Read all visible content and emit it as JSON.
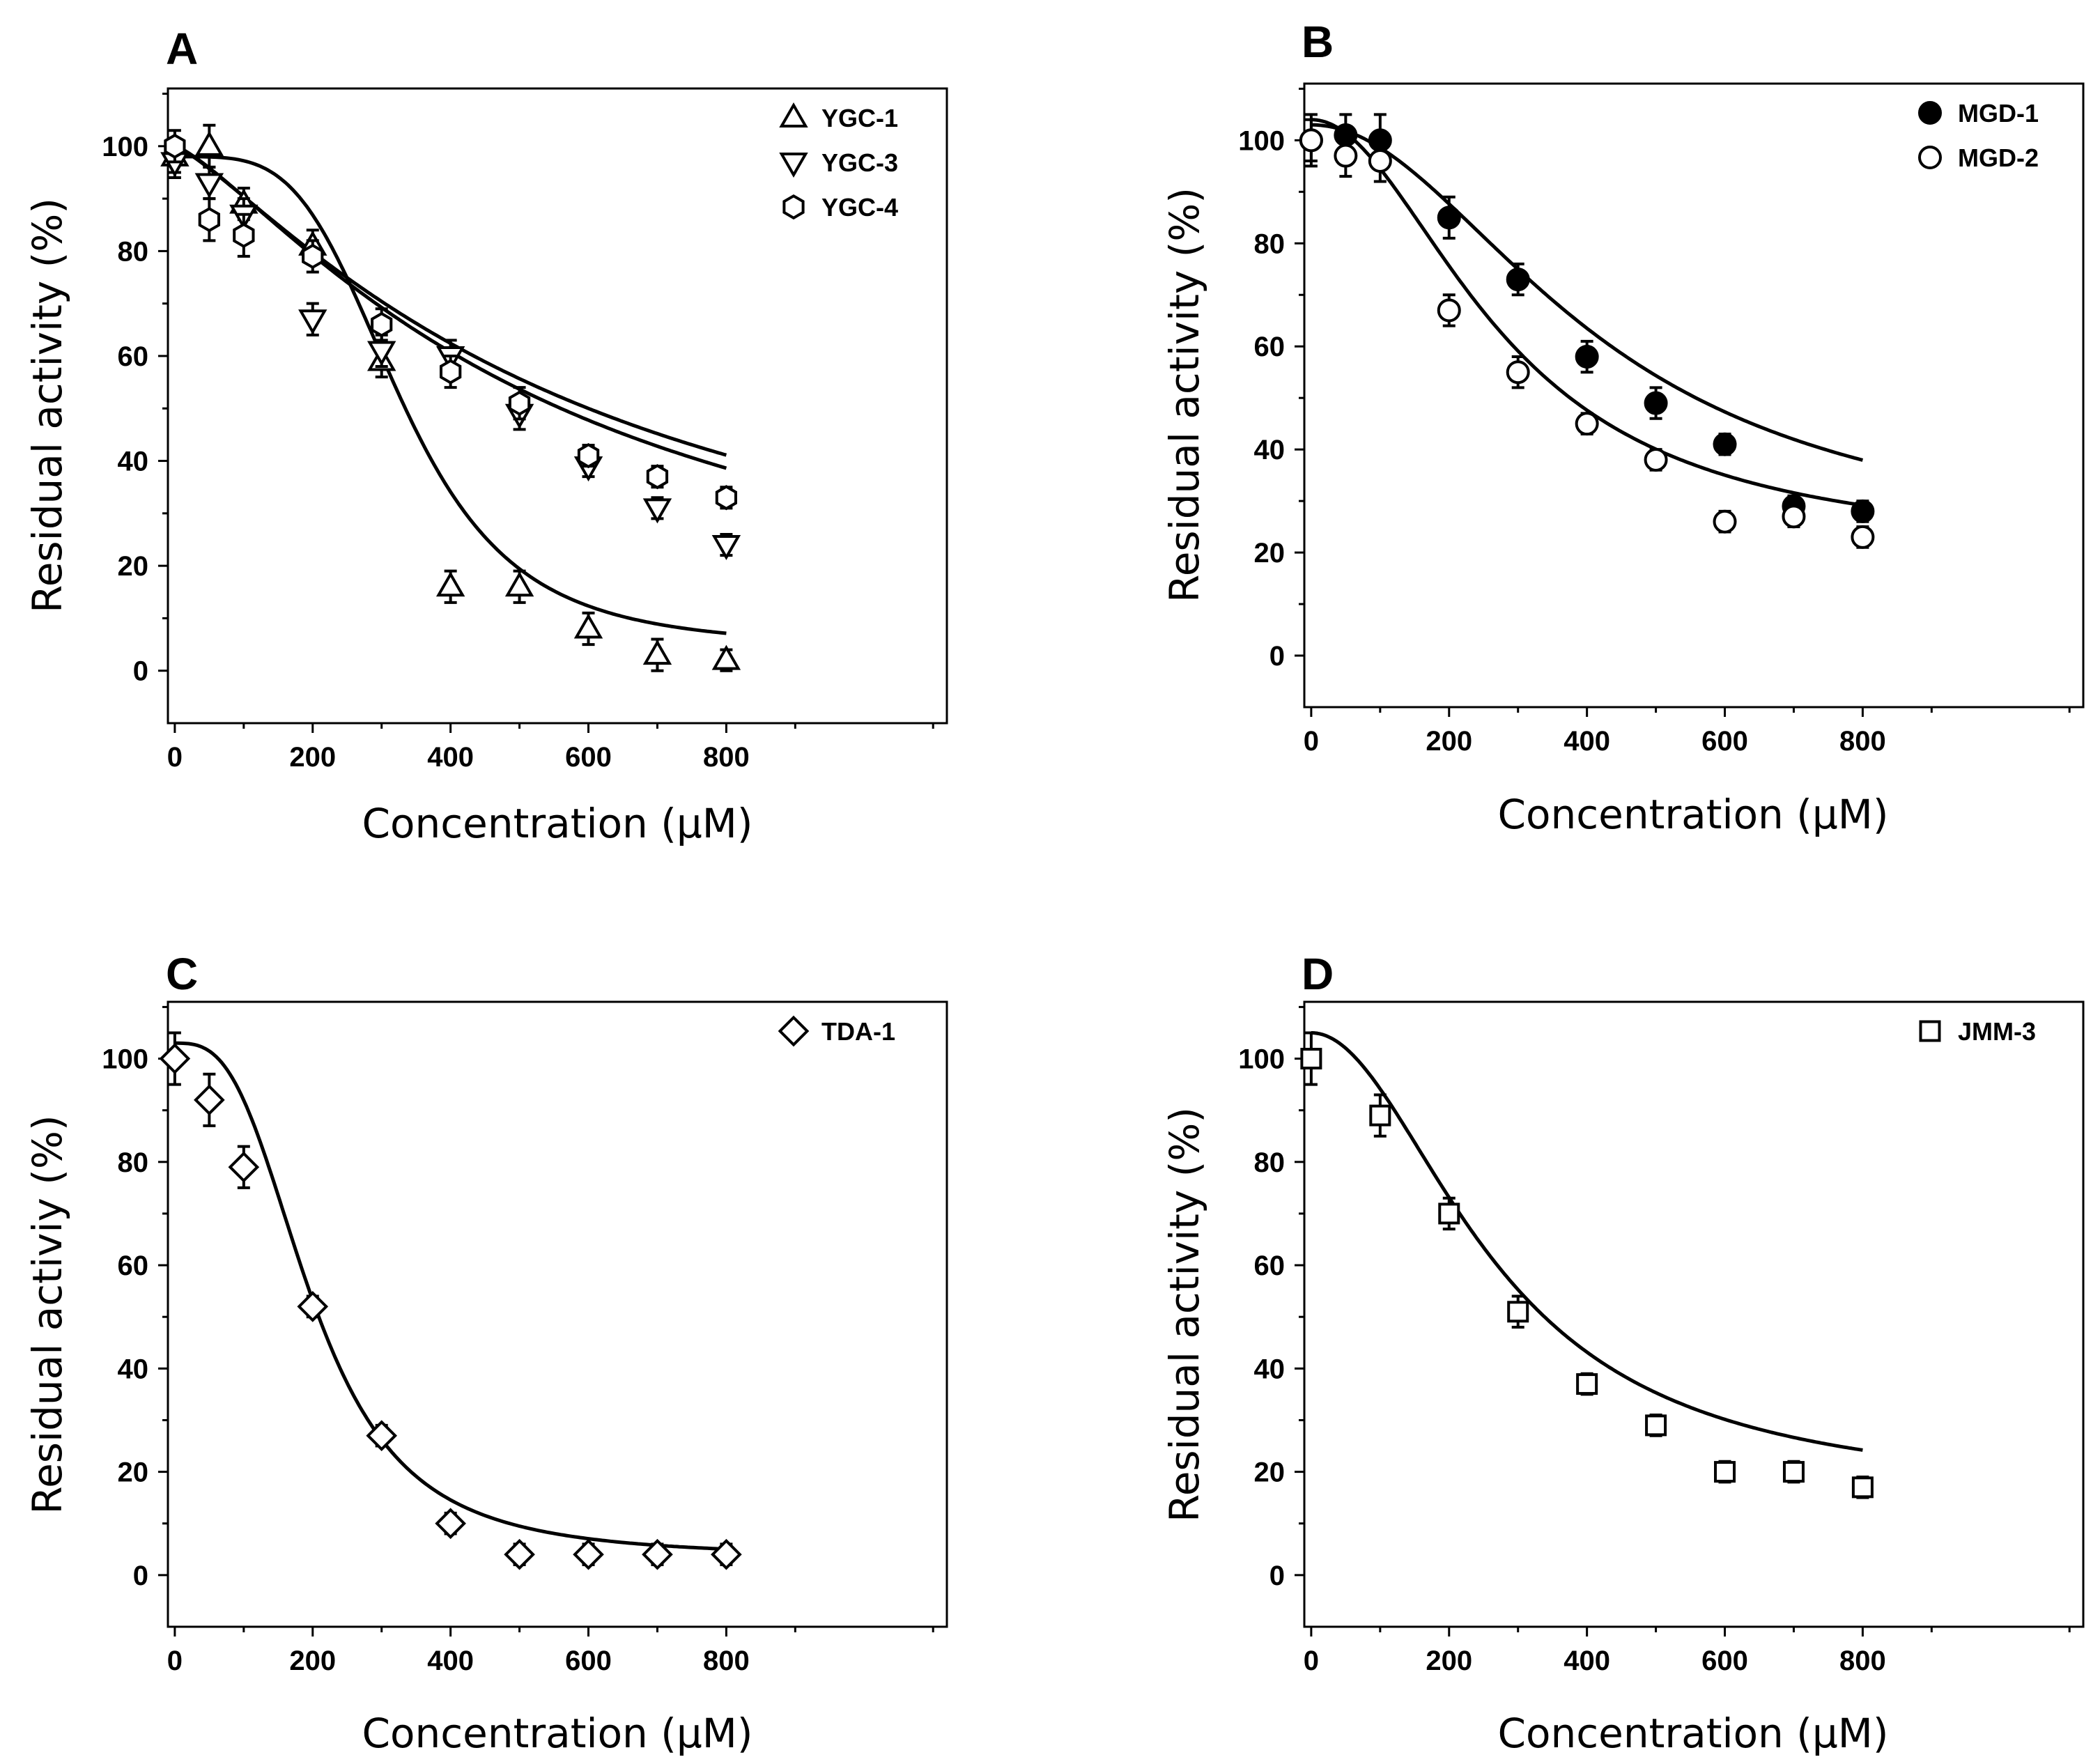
{
  "chart_data": [
    {
      "type": "scatter",
      "panel": "A",
      "xlabel": "Concentration (μM)",
      "ylabel": "Residual activity (%)",
      "xlim": [
        -10,
        1120
      ],
      "ylim": [
        -10,
        111
      ],
      "xticks": [
        0,
        200,
        400,
        600,
        800
      ],
      "yticks": [
        0,
        20,
        40,
        60,
        80,
        100
      ],
      "legend_position": "top-right",
      "series": [
        {
          "name": "YGC-1",
          "marker": "triangle-up",
          "filled": false,
          "x": [
            0,
            50,
            100,
            200,
            300,
            400,
            500,
            600,
            700,
            800
          ],
          "y": [
            98,
            100,
            89,
            81,
            59,
            16,
            16,
            8,
            3,
            2
          ],
          "err": [
            3,
            4,
            3,
            3,
            3,
            3,
            3,
            3,
            3,
            2
          ],
          "fit": {
            "model": "logistic",
            "top": 98,
            "bottom": 4.5,
            "ic50": 330,
            "hill": 4.0
          }
        },
        {
          "name": "YGC-3",
          "marker": "triangle-down",
          "filled": false,
          "x": [
            0,
            50,
            100,
            200,
            300,
            400,
            500,
            600,
            700,
            800
          ],
          "y": [
            97,
            93,
            87,
            67,
            61,
            60,
            49,
            39,
            31,
            24
          ],
          "err": [
            3,
            3,
            3,
            3,
            3,
            3,
            3,
            2,
            2,
            2
          ],
          "fit": {
            "model": "logistic",
            "top": 100,
            "bottom": 0,
            "ic50": 560,
            "hill": 1.3
          }
        },
        {
          "name": "YGC-4",
          "marker": "hexagon",
          "filled": false,
          "x": [
            0,
            50,
            100,
            200,
            300,
            400,
            500,
            600,
            700,
            800
          ],
          "y": [
            100,
            86,
            83,
            79,
            66,
            57,
            51,
            41,
            37,
            33
          ],
          "err": [
            3,
            4,
            4,
            3,
            3,
            3,
            3,
            2,
            2,
            2
          ],
          "fit": {
            "model": "logistic",
            "top": 100,
            "bottom": 0,
            "ic50": 600,
            "hill": 1.25
          }
        }
      ]
    },
    {
      "type": "scatter",
      "panel": "B",
      "xlabel": "Concentration (μM)",
      "ylabel": "Residual activity (%)",
      "xlim": [
        -10,
        1120
      ],
      "ylim": [
        -10,
        111
      ],
      "xticks": [
        0,
        200,
        400,
        600,
        800
      ],
      "yticks": [
        0,
        20,
        40,
        60,
        80,
        100
      ],
      "legend_position": "top-right",
      "series": [
        {
          "name": "MGD-1",
          "marker": "circle",
          "filled": true,
          "x": [
            0,
            50,
            100,
            200,
            300,
            400,
            500,
            600,
            700,
            800
          ],
          "y": [
            100,
            101,
            100,
            85,
            73,
            58,
            49,
            41,
            29,
            28
          ],
          "err": [
            4,
            4,
            5,
            4,
            3,
            3,
            3,
            2,
            2,
            2
          ],
          "fit": {
            "model": "logistic",
            "top": 103,
            "bottom": 20,
            "ic50": 420,
            "hill": 2.0
          }
        },
        {
          "name": "MGD-2",
          "marker": "circle",
          "filled": false,
          "x": [
            0,
            50,
            100,
            200,
            300,
            400,
            500,
            600,
            700,
            800
          ],
          "y": [
            100,
            97,
            96,
            67,
            55,
            45,
            38,
            26,
            27,
            23
          ],
          "err": [
            5,
            4,
            4,
            3,
            3,
            2,
            2,
            2,
            2,
            2
          ],
          "fit": {
            "model": "logistic",
            "top": 104,
            "bottom": 20,
            "ic50": 280,
            "hill": 2.0
          }
        }
      ]
    },
    {
      "type": "scatter",
      "panel": "C",
      "xlabel": "Concentration (μM)",
      "ylabel": "Residual activiy (%)",
      "xlim": [
        -10,
        1120
      ],
      "ylim": [
        -10,
        111
      ],
      "xticks": [
        0,
        200,
        400,
        600,
        800
      ],
      "yticks": [
        0,
        20,
        40,
        60,
        80,
        100
      ],
      "legend_position": "top-right",
      "series": [
        {
          "name": "TDA-1",
          "marker": "diamond",
          "filled": false,
          "x": [
            0,
            50,
            100,
            200,
            300,
            400,
            500,
            600,
            700,
            800
          ],
          "y": [
            100,
            92,
            79,
            52,
            27,
            10,
            4,
            4,
            4,
            4
          ],
          "err": [
            5,
            5,
            4,
            2,
            2,
            2,
            2,
            2,
            2,
            2
          ],
          "fit": {
            "model": "logistic",
            "top": 103,
            "bottom": 3.5,
            "ic50": 200,
            "hill": 3.0
          }
        }
      ]
    },
    {
      "type": "scatter",
      "panel": "D",
      "xlabel": "Concentration (μM)",
      "ylabel": "Residual activity (%)",
      "xlim": [
        -10,
        1120
      ],
      "ylim": [
        -10,
        111
      ],
      "xticks": [
        0,
        200,
        400,
        600,
        800
      ],
      "yticks": [
        0,
        20,
        40,
        60,
        80,
        100
      ],
      "legend_position": "top-right",
      "series": [
        {
          "name": "JMM-3",
          "marker": "square",
          "filled": false,
          "x": [
            0,
            100,
            200,
            300,
            400,
            500,
            600,
            700,
            800
          ],
          "y": [
            100,
            89,
            70,
            51,
            37,
            29,
            20,
            20,
            17
          ],
          "err": [
            5,
            4,
            3,
            3,
            2,
            2,
            2,
            2,
            2
          ],
          "fit": {
            "model": "logistic",
            "top": 105,
            "bottom": 15,
            "ic50": 270,
            "hill": 2.0
          }
        }
      ]
    }
  ]
}
